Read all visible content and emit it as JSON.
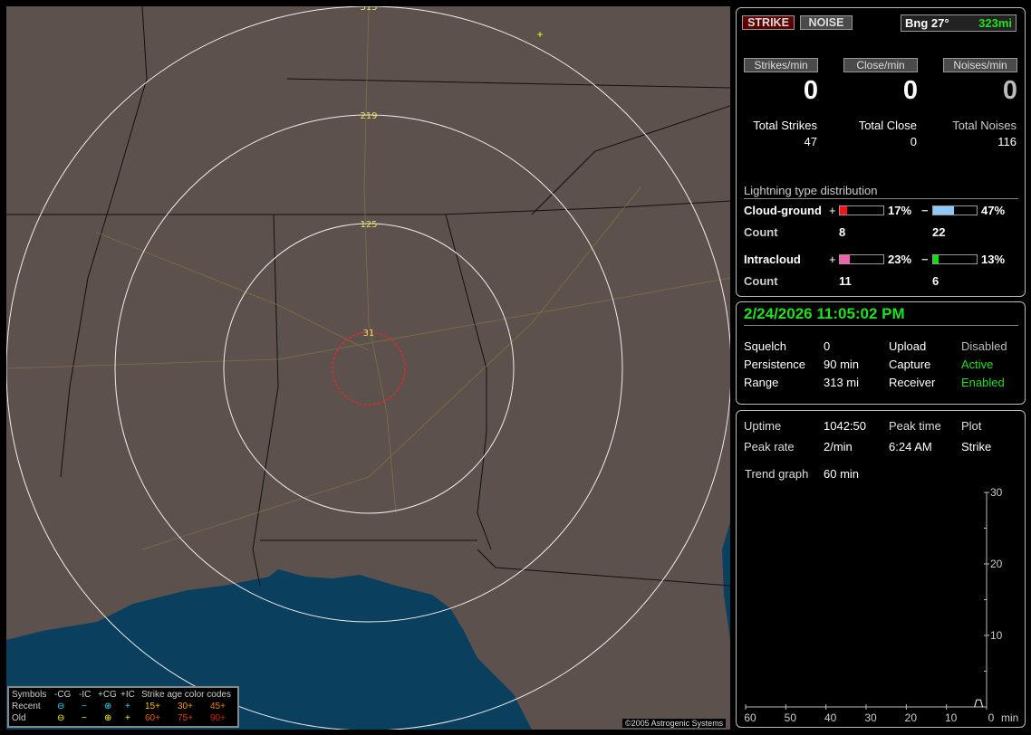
{
  "map": {
    "ring_labels": [
      "313",
      "219",
      "125",
      "31"
    ],
    "copyright": "©2005 Astrogenic Systems",
    "colors": {
      "land": "#5d514d",
      "water": "#0b3f5e",
      "rings": "#ffffff",
      "close_ring": "#ff2020",
      "roads": "#9a8a2a"
    },
    "strike_marker": "plus-yellow",
    "legend": {
      "header": [
        "Symbols",
        "-CG",
        "-IC",
        "+CG",
        "+IC",
        "Strike age color codes"
      ],
      "recent": {
        "label": "Recent",
        "ages": [
          "15+",
          "30+",
          "45+"
        ]
      },
      "old": {
        "label": "Old",
        "ages": [
          "60+",
          "75+",
          "90+"
        ]
      }
    }
  },
  "top": {
    "strike_btn": "STRIKE",
    "noise_btn": "NOISE",
    "bearing": "Bng 27°",
    "distance": "323mi",
    "rates": [
      {
        "label": "Strikes/min",
        "value": "0"
      },
      {
        "label": "Close/min",
        "value": "0"
      },
      {
        "label": "Noises/min",
        "value": "0"
      }
    ],
    "totals": [
      {
        "label": "Total Strikes",
        "value": "47"
      },
      {
        "label": "Total Close",
        "value": "0"
      },
      {
        "label": "Total Noises",
        "value": "116"
      }
    ],
    "dist_title": "Lightning type distribution",
    "cg": {
      "label": "Cloud-ground",
      "pos_pct": 17,
      "pos_text": "17%",
      "neg_pct": 47,
      "neg_text": "47%",
      "count_label": "Count",
      "pos_count": "8",
      "neg_count": "22"
    },
    "ic": {
      "label": "Intracloud",
      "pos_pct": 23,
      "pos_text": "23%",
      "neg_pct": 13,
      "neg_text": "13%",
      "count_label": "Count",
      "pos_count": "11",
      "neg_count": "6"
    },
    "plus": "+",
    "minus": "−"
  },
  "status": {
    "datetime": "2/24/2026 11:05:02 PM",
    "rows": [
      [
        "Squelch",
        "0",
        "Upload",
        "Disabled"
      ],
      [
        "Persistence",
        "90 min",
        "Capture",
        "Active"
      ],
      [
        "Range",
        "313 mi",
        "Receiver",
        "Enabled"
      ]
    ]
  },
  "trend": {
    "uptime_label": "Uptime",
    "uptime": "1042:50",
    "peak_time_label": "Peak time",
    "plot_label": "Plot",
    "peak_rate_label": "Peak rate",
    "peak_rate": "2/min",
    "peak_time": "6:24 AM",
    "plot": "Strike",
    "trend_label": "Trend graph",
    "trend_value": "60 min",
    "chart_data": {
      "type": "line",
      "x_ticks": [
        "60",
        "50",
        "40",
        "30",
        "20",
        "10",
        "0"
      ],
      "x_unit": "min",
      "y_ticks": [
        "30",
        "20",
        "10"
      ],
      "ylim": [
        0,
        30
      ],
      "xlim": [
        60,
        0
      ],
      "series": [
        {
          "x": [
            3,
            2.5,
            1.5,
            1
          ],
          "y": [
            0,
            1,
            1,
            0
          ]
        }
      ]
    }
  }
}
